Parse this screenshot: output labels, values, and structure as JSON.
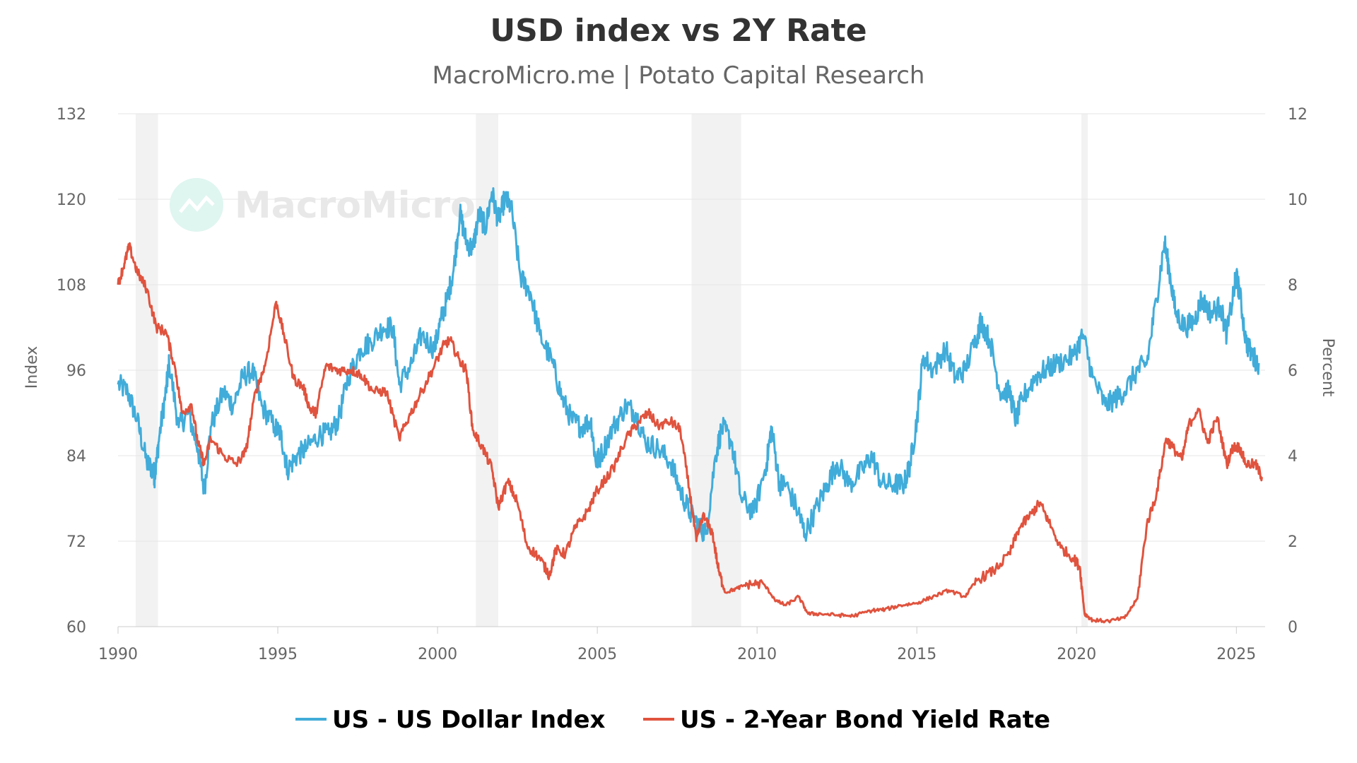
{
  "chart_data": {
    "type": "line",
    "title": "USD index vs 2Y Rate",
    "subtitle": "MacroMicro.me | Potato Capital Research",
    "watermark": "MacroMicro",
    "x_axis": {
      "min": 1990,
      "max": 2025.9,
      "ticks": [
        "1990",
        "1995",
        "2000",
        "2005",
        "2010",
        "2015",
        "2020",
        "2025"
      ]
    },
    "y_left": {
      "label": "Index",
      "min": 60,
      "max": 132,
      "ticks": [
        "60",
        "72",
        "84",
        "96",
        "108",
        "120",
        "132"
      ]
    },
    "y_right": {
      "label": "Percent",
      "min": 0,
      "max": 12,
      "ticks": [
        "0",
        "2",
        "4",
        "6",
        "8",
        "10",
        "12"
      ]
    },
    "recessions": [
      [
        1990.55,
        1991.25
      ],
      [
        2001.2,
        2001.9
      ],
      [
        2007.95,
        2009.5
      ],
      [
        2020.15,
        2020.35
      ]
    ],
    "series": [
      {
        "name": "US - US Dollar Index",
        "axis": "left",
        "color": "#41acd9",
        "points": [
          [
            1990.0,
            94
          ],
          [
            1990.3,
            93
          ],
          [
            1990.6,
            89
          ],
          [
            1990.9,
            83
          ],
          [
            1991.1,
            82
          ],
          [
            1991.15,
            81
          ],
          [
            1991.3,
            87
          ],
          [
            1991.5,
            93
          ],
          [
            1991.6,
            97
          ],
          [
            1991.9,
            88
          ],
          [
            1992.2,
            90
          ],
          [
            1992.5,
            85
          ],
          [
            1992.7,
            79
          ],
          [
            1992.9,
            88
          ],
          [
            1993.3,
            93
          ],
          [
            1993.6,
            91
          ],
          [
            1993.9,
            95
          ],
          [
            1994.2,
            96
          ],
          [
            1994.5,
            91
          ],
          [
            1994.9,
            88
          ],
          [
            1995.1,
            87
          ],
          [
            1995.3,
            82
          ],
          [
            1995.6,
            84
          ],
          [
            1995.9,
            85
          ],
          [
            1996.3,
            87
          ],
          [
            1996.6,
            87
          ],
          [
            1996.9,
            89
          ],
          [
            1997.2,
            95
          ],
          [
            1997.6,
            99
          ],
          [
            1997.9,
            100
          ],
          [
            1998.3,
            102
          ],
          [
            1998.6,
            102
          ],
          [
            1998.8,
            94
          ],
          [
            1999.2,
            97
          ],
          [
            1999.5,
            101
          ],
          [
            1999.9,
            99
          ],
          [
            2000.1,
            103
          ],
          [
            2000.3,
            106
          ],
          [
            2000.5,
            110
          ],
          [
            2000.7,
            118
          ],
          [
            2000.9,
            114
          ],
          [
            2001.1,
            113
          ],
          [
            2001.3,
            118
          ],
          [
            2001.5,
            116
          ],
          [
            2001.7,
            121
          ],
          [
            2001.9,
            117
          ],
          [
            2002.1,
            120
          ],
          [
            2002.3,
            119
          ],
          [
            2002.6,
            109
          ],
          [
            2002.9,
            107
          ],
          [
            2003.2,
            101
          ],
          [
            2003.6,
            97
          ],
          [
            2003.9,
            92
          ],
          [
            2004.2,
            89
          ],
          [
            2004.5,
            88
          ],
          [
            2004.8,
            89
          ],
          [
            2004.95,
            83
          ],
          [
            2005.1,
            84
          ],
          [
            2005.5,
            88
          ],
          [
            2005.9,
            91
          ],
          [
            2006.2,
            90
          ],
          [
            2006.5,
            86
          ],
          [
            2006.9,
            85
          ],
          [
            2007.3,
            83
          ],
          [
            2007.6,
            79
          ],
          [
            2007.9,
            76
          ],
          [
            2008.2,
            74
          ],
          [
            2008.4,
            73
          ],
          [
            2008.7,
            84
          ],
          [
            2008.9,
            88
          ],
          [
            2009.2,
            86
          ],
          [
            2009.5,
            78
          ],
          [
            2009.9,
            76
          ],
          [
            2010.3,
            83
          ],
          [
            2010.45,
            88
          ],
          [
            2010.7,
            80
          ],
          [
            2010.9,
            80
          ],
          [
            2011.3,
            76
          ],
          [
            2011.5,
            73
          ],
          [
            2011.9,
            77
          ],
          [
            2012.2,
            80
          ],
          [
            2012.5,
            83
          ],
          [
            2012.9,
            80
          ],
          [
            2013.3,
            82
          ],
          [
            2013.6,
            84
          ],
          [
            2013.9,
            80
          ],
          [
            2014.3,
            80
          ],
          [
            2014.6,
            80
          ],
          [
            2014.8,
            83
          ],
          [
            2015.0,
            89
          ],
          [
            2015.2,
            98
          ],
          [
            2015.5,
            96
          ],
          [
            2015.9,
            99
          ],
          [
            2016.2,
            95
          ],
          [
            2016.5,
            96
          ],
          [
            2016.9,
            101
          ],
          [
            2017.0,
            103
          ],
          [
            2017.3,
            100
          ],
          [
            2017.6,
            93
          ],
          [
            2017.9,
            93
          ],
          [
            2018.1,
            89
          ],
          [
            2018.3,
            92
          ],
          [
            2018.7,
            95
          ],
          [
            2019.0,
            96
          ],
          [
            2019.4,
            97
          ],
          [
            2019.9,
            98
          ],
          [
            2020.2,
            101
          ],
          [
            2020.5,
            95
          ],
          [
            2020.9,
            91
          ],
          [
            2021.2,
            92
          ],
          [
            2021.5,
            93
          ],
          [
            2021.9,
            96
          ],
          [
            2022.2,
            97
          ],
          [
            2022.5,
            106
          ],
          [
            2022.75,
            114
          ],
          [
            2022.9,
            110
          ],
          [
            2023.1,
            104
          ],
          [
            2023.4,
            102
          ],
          [
            2023.7,
            103
          ],
          [
            2023.9,
            106
          ],
          [
            2024.2,
            104
          ],
          [
            2024.5,
            105
          ],
          [
            2024.7,
            101
          ],
          [
            2024.95,
            108
          ],
          [
            2025.0,
            109
          ],
          [
            2025.1,
            107
          ],
          [
            2025.3,
            100
          ],
          [
            2025.5,
            98
          ],
          [
            2025.7,
            97
          ]
        ]
      },
      {
        "name": "US - 2-Year Bond Yield Rate",
        "axis": "right",
        "color": "#e0533e",
        "points": [
          [
            1990.0,
            8.0
          ],
          [
            1990.2,
            8.5
          ],
          [
            1990.35,
            8.9
          ],
          [
            1990.6,
            8.3
          ],
          [
            1990.9,
            7.9
          ],
          [
            1991.2,
            7.0
          ],
          [
            1991.5,
            6.9
          ],
          [
            1991.8,
            6.0
          ],
          [
            1992.0,
            5.0
          ],
          [
            1992.3,
            5.2
          ],
          [
            1992.5,
            4.3
          ],
          [
            1992.7,
            3.8
          ],
          [
            1992.9,
            4.4
          ],
          [
            1993.3,
            4.0
          ],
          [
            1993.7,
            3.8
          ],
          [
            1994.0,
            4.1
          ],
          [
            1994.3,
            5.5
          ],
          [
            1994.6,
            6.1
          ],
          [
            1994.95,
            7.6
          ],
          [
            1995.2,
            6.8
          ],
          [
            1995.5,
            5.8
          ],
          [
            1995.8,
            5.6
          ],
          [
            1996.0,
            5.1
          ],
          [
            1996.2,
            5.0
          ],
          [
            1996.5,
            6.1
          ],
          [
            1996.9,
            6.0
          ],
          [
            1997.3,
            6.0
          ],
          [
            1997.6,
            5.9
          ],
          [
            1998.0,
            5.5
          ],
          [
            1998.4,
            5.5
          ],
          [
            1998.8,
            4.4
          ],
          [
            1999.1,
            4.9
          ],
          [
            1999.5,
            5.5
          ],
          [
            1999.9,
            6.1
          ],
          [
            2000.2,
            6.6
          ],
          [
            2000.4,
            6.7
          ],
          [
            2000.7,
            6.2
          ],
          [
            2000.9,
            6.0
          ],
          [
            2001.1,
            4.6
          ],
          [
            2001.4,
            4.2
          ],
          [
            2001.7,
            3.7
          ],
          [
            2001.9,
            2.8
          ],
          [
            2002.2,
            3.4
          ],
          [
            2002.5,
            2.9
          ],
          [
            2002.8,
            1.9
          ],
          [
            2003.2,
            1.6
          ],
          [
            2003.5,
            1.2
          ],
          [
            2003.7,
            1.8
          ],
          [
            2004.0,
            1.7
          ],
          [
            2004.3,
            2.3
          ],
          [
            2004.7,
            2.7
          ],
          [
            2005.0,
            3.2
          ],
          [
            2005.5,
            3.7
          ],
          [
            2005.9,
            4.4
          ],
          [
            2006.3,
            4.8
          ],
          [
            2006.6,
            5.0
          ],
          [
            2006.9,
            4.7
          ],
          [
            2007.3,
            4.8
          ],
          [
            2007.6,
            4.6
          ],
          [
            2007.9,
            3.1
          ],
          [
            2008.1,
            2.0
          ],
          [
            2008.3,
            2.6
          ],
          [
            2008.6,
            2.2
          ],
          [
            2008.8,
            1.3
          ],
          [
            2009.0,
            0.8
          ],
          [
            2009.4,
            0.9
          ],
          [
            2009.7,
            1.0
          ],
          [
            2010.2,
            1.0
          ],
          [
            2010.6,
            0.6
          ],
          [
            2010.9,
            0.5
          ],
          [
            2011.3,
            0.7
          ],
          [
            2011.6,
            0.3
          ],
          [
            2012.0,
            0.3
          ],
          [
            2012.5,
            0.27
          ],
          [
            2013.0,
            0.25
          ],
          [
            2013.6,
            0.38
          ],
          [
            2014.0,
            0.4
          ],
          [
            2014.5,
            0.5
          ],
          [
            2015.0,
            0.55
          ],
          [
            2015.5,
            0.7
          ],
          [
            2016.0,
            0.85
          ],
          [
            2016.5,
            0.7
          ],
          [
            2016.9,
            1.1
          ],
          [
            2017.4,
            1.3
          ],
          [
            2017.9,
            1.7
          ],
          [
            2018.2,
            2.3
          ],
          [
            2018.6,
            2.65
          ],
          [
            2018.85,
            2.9
          ],
          [
            2019.1,
            2.5
          ],
          [
            2019.5,
            1.85
          ],
          [
            2019.9,
            1.6
          ],
          [
            2020.1,
            1.4
          ],
          [
            2020.25,
            0.3
          ],
          [
            2020.5,
            0.15
          ],
          [
            2021.0,
            0.13
          ],
          [
            2021.5,
            0.2
          ],
          [
            2021.9,
            0.65
          ],
          [
            2022.2,
            2.4
          ],
          [
            2022.5,
            3.1
          ],
          [
            2022.8,
            4.4
          ],
          [
            2023.0,
            4.2
          ],
          [
            2023.3,
            3.9
          ],
          [
            2023.5,
            4.7
          ],
          [
            2023.8,
            5.1
          ],
          [
            2024.1,
            4.3
          ],
          [
            2024.4,
            4.9
          ],
          [
            2024.7,
            3.8
          ],
          [
            2024.9,
            4.2
          ],
          [
            2025.1,
            4.2
          ],
          [
            2025.3,
            3.8
          ],
          [
            2025.6,
            3.8
          ],
          [
            2025.8,
            3.5
          ]
        ]
      }
    ]
  }
}
